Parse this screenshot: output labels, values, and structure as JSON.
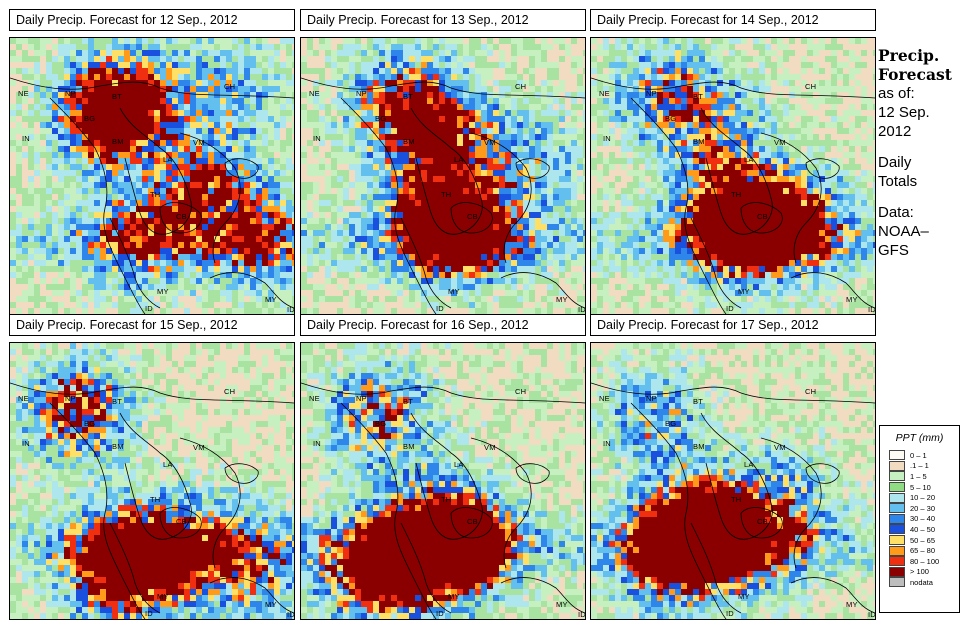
{
  "panels": [
    {
      "title": "Daily Precip. Forecast for  12 Sep., 2012"
    },
    {
      "title": "Daily Precip. Forecast for  13 Sep., 2012"
    },
    {
      "title": "Daily Precip. Forecast for  14 Sep., 2012"
    },
    {
      "title": "Daily Precip. Forecast for  15 Sep., 2012"
    },
    {
      "title": "Daily Precip. Forecast for  16 Sep., 2012"
    },
    {
      "title": "Daily Precip. Forecast for  17 Sep., 2012"
    }
  ],
  "country_labels": {
    "ne": "NE",
    "np": "NP",
    "bt": "BT",
    "bd": "BG",
    "in": "IN",
    "ch": "CH",
    "bm": "BM",
    "vm": "VM",
    "la": "LA",
    "th": "TH",
    "cb": "CB",
    "my": "MY",
    "my2": "MY",
    "id": "ID",
    "id2": "ID"
  },
  "sidebar": {
    "title_line1": "Precip.",
    "title_line2": "Forecast",
    "asof": "as of:",
    "date_line1": "12 Sep.",
    "date_line2": "2012",
    "daily_line1": "Daily",
    "daily_line2": "Totals",
    "data_line1": "Data:",
    "data_line2": "NOAA–",
    "data_line3": "GFS"
  },
  "legend": {
    "title": "PPT (mm)",
    "items": [
      {
        "label": "0 – 1",
        "color": "#fbfbf4"
      },
      {
        "label": ".1 – 1",
        "color": "#f2dcc1"
      },
      {
        "label": "1 – 5",
        "color": "#c6f0bf"
      },
      {
        "label": "5 – 10",
        "color": "#8fdc82"
      },
      {
        "label": "10 – 20",
        "color": "#aee6ee"
      },
      {
        "label": "20 – 30",
        "color": "#62bfee"
      },
      {
        "label": "30 – 40",
        "color": "#2f86ea"
      },
      {
        "label": "40 – 50",
        "color": "#1a50de"
      },
      {
        "label": "50 – 65",
        "color": "#ffe066"
      },
      {
        "label": "65 – 80",
        "color": "#ff9a1a"
      },
      {
        "label": "80 – 100",
        "color": "#ef2f10"
      },
      {
        "label": "> 100",
        "color": "#8a0000"
      },
      {
        "label": "nodata",
        "color": "#bdbdbd"
      }
    ]
  }
}
